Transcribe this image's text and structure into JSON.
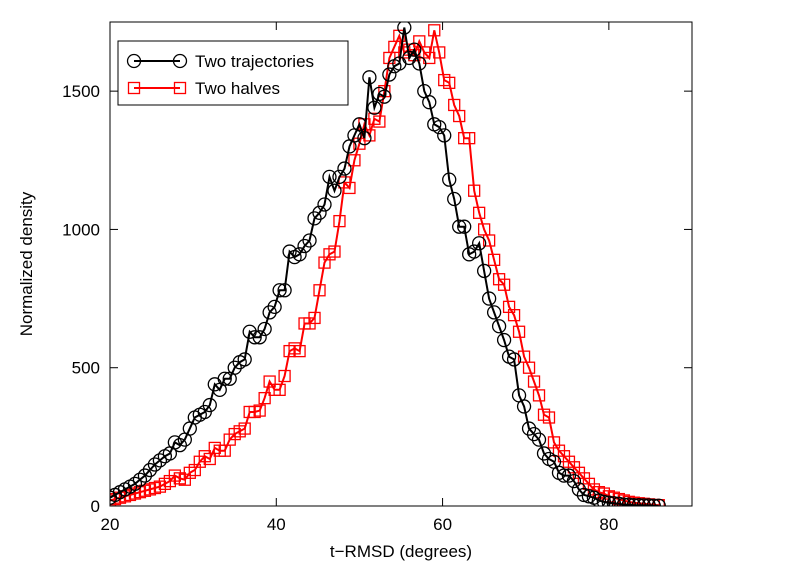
{
  "chart_data": {
    "type": "line",
    "xlabel": "t−RMSD (degrees)",
    "ylabel": "Normalized density",
    "xlim": [
      20,
      90
    ],
    "ylim": [
      0,
      1750
    ],
    "xticks": [
      20,
      40,
      60,
      80
    ],
    "yticks": [
      0,
      500,
      1000,
      1500
    ],
    "grid": false,
    "legend_position": "top-left",
    "colors": {
      "two_trajectories": "#000000",
      "two_halves": "#ff0000"
    },
    "series": [
      {
        "name": "Two trajectories",
        "marker": "circle",
        "points": [
          [
            20,
            30
          ],
          [
            20.6,
            40
          ],
          [
            21.2,
            50
          ],
          [
            21.8,
            60
          ],
          [
            22.4,
            70
          ],
          [
            23.0,
            80
          ],
          [
            23.6,
            95
          ],
          [
            24.2,
            110
          ],
          [
            24.8,
            130
          ],
          [
            25.4,
            150
          ],
          [
            26.0,
            165
          ],
          [
            26.6,
            180
          ],
          [
            27.2,
            190
          ],
          [
            27.8,
            230
          ],
          [
            28.4,
            220
          ],
          [
            29.0,
            240
          ],
          [
            29.6,
            280
          ],
          [
            30.2,
            320
          ],
          [
            30.8,
            330
          ],
          [
            31.4,
            340
          ],
          [
            32.0,
            365
          ],
          [
            32.6,
            440
          ],
          [
            33.2,
            420
          ],
          [
            33.8,
            460
          ],
          [
            34.4,
            460
          ],
          [
            35.0,
            500
          ],
          [
            35.6,
            520
          ],
          [
            36.2,
            530
          ],
          [
            36.8,
            630
          ],
          [
            37.4,
            610
          ],
          [
            38.0,
            610
          ],
          [
            38.6,
            640
          ],
          [
            39.2,
            700
          ],
          [
            39.8,
            720
          ],
          [
            40.4,
            780
          ],
          [
            41.0,
            780
          ],
          [
            41.6,
            920
          ],
          [
            42.2,
            900
          ],
          [
            42.8,
            910
          ],
          [
            43.4,
            940
          ],
          [
            44.0,
            960
          ],
          [
            44.6,
            1040
          ],
          [
            45.2,
            1060
          ],
          [
            45.8,
            1090
          ],
          [
            46.4,
            1190
          ],
          [
            47.0,
            1140
          ],
          [
            47.6,
            1190
          ],
          [
            48.2,
            1220
          ],
          [
            48.8,
            1300
          ],
          [
            49.4,
            1340
          ],
          [
            50.0,
            1380
          ],
          [
            50.6,
            1330
          ],
          [
            51.2,
            1550
          ],
          [
            51.8,
            1440
          ],
          [
            52.4,
            1490
          ],
          [
            53.0,
            1480
          ],
          [
            53.6,
            1560
          ],
          [
            54.2,
            1590
          ],
          [
            54.8,
            1600
          ],
          [
            55.4,
            1730
          ],
          [
            56.0,
            1620
          ],
          [
            56.6,
            1650
          ],
          [
            57.2,
            1600
          ],
          [
            57.8,
            1500
          ],
          [
            58.4,
            1460
          ],
          [
            59.0,
            1380
          ],
          [
            59.6,
            1370
          ],
          [
            60.2,
            1340
          ],
          [
            60.8,
            1180
          ],
          [
            61.4,
            1110
          ],
          [
            62.0,
            1010
          ],
          [
            62.6,
            1010
          ],
          [
            63.2,
            910
          ],
          [
            63.8,
            920
          ],
          [
            64.4,
            950
          ],
          [
            65.0,
            850
          ],
          [
            65.6,
            750
          ],
          [
            66.2,
            700
          ],
          [
            66.8,
            650
          ],
          [
            67.4,
            600
          ],
          [
            68.0,
            540
          ],
          [
            68.6,
            530
          ],
          [
            69.2,
            400
          ],
          [
            69.8,
            360
          ],
          [
            70.4,
            280
          ],
          [
            71.0,
            260
          ],
          [
            71.6,
            240
          ],
          [
            72.2,
            190
          ],
          [
            72.8,
            170
          ],
          [
            73.4,
            160
          ],
          [
            74.0,
            120
          ],
          [
            74.6,
            110
          ],
          [
            75.2,
            110
          ],
          [
            75.8,
            90
          ],
          [
            76.4,
            60
          ],
          [
            77.0,
            40
          ],
          [
            77.6,
            35
          ],
          [
            78.2,
            30
          ],
          [
            78.8,
            20
          ],
          [
            79.4,
            15
          ],
          [
            80.0,
            12
          ],
          [
            80.6,
            10
          ],
          [
            81.2,
            8
          ],
          [
            81.8,
            5
          ],
          [
            82.4,
            5
          ],
          [
            83.0,
            3
          ],
          [
            83.6,
            3
          ],
          [
            84.2,
            2
          ],
          [
            84.8,
            2
          ],
          [
            85.4,
            1
          ],
          [
            86.0,
            1
          ]
        ]
      },
      {
        "name": "Two halves",
        "marker": "square",
        "points": [
          [
            20,
            20
          ],
          [
            20.6,
            25
          ],
          [
            21.2,
            30
          ],
          [
            21.8,
            35
          ],
          [
            22.4,
            40
          ],
          [
            23.0,
            45
          ],
          [
            23.6,
            50
          ],
          [
            24.2,
            55
          ],
          [
            24.8,
            60
          ],
          [
            25.4,
            65
          ],
          [
            26.0,
            70
          ],
          [
            26.6,
            80
          ],
          [
            27.2,
            90
          ],
          [
            27.8,
            110
          ],
          [
            28.4,
            100
          ],
          [
            29.0,
            95
          ],
          [
            29.6,
            120
          ],
          [
            30.2,
            130
          ],
          [
            30.8,
            160
          ],
          [
            31.4,
            180
          ],
          [
            32.0,
            170
          ],
          [
            32.6,
            210
          ],
          [
            33.2,
            200
          ],
          [
            33.8,
            200
          ],
          [
            34.4,
            240
          ],
          [
            35.0,
            260
          ],
          [
            35.6,
            270
          ],
          [
            36.2,
            280
          ],
          [
            36.8,
            340
          ],
          [
            37.4,
            340
          ],
          [
            38.0,
            345
          ],
          [
            38.6,
            390
          ],
          [
            39.2,
            450
          ],
          [
            39.8,
            420
          ],
          [
            40.4,
            420
          ],
          [
            41.0,
            470
          ],
          [
            41.6,
            560
          ],
          [
            42.2,
            570
          ],
          [
            42.8,
            560
          ],
          [
            43.4,
            660
          ],
          [
            44.0,
            660
          ],
          [
            44.6,
            680
          ],
          [
            45.2,
            780
          ],
          [
            45.8,
            880
          ],
          [
            46.4,
            910
          ],
          [
            47.0,
            920
          ],
          [
            47.6,
            1030
          ],
          [
            48.2,
            1170
          ],
          [
            48.8,
            1150
          ],
          [
            49.4,
            1250
          ],
          [
            50.0,
            1310
          ],
          [
            50.6,
            1380
          ],
          [
            51.2,
            1340
          ],
          [
            51.8,
            1400
          ],
          [
            52.4,
            1390
          ],
          [
            53.0,
            1500
          ],
          [
            53.6,
            1620
          ],
          [
            54.2,
            1660
          ],
          [
            54.8,
            1700
          ],
          [
            55.4,
            1640
          ],
          [
            56.0,
            1650
          ],
          [
            56.6,
            1630
          ],
          [
            57.2,
            1680
          ],
          [
            57.8,
            1640
          ],
          [
            58.4,
            1620
          ],
          [
            59.0,
            1720
          ],
          [
            59.6,
            1640
          ],
          [
            60.2,
            1540
          ],
          [
            60.8,
            1530
          ],
          [
            61.4,
            1450
          ],
          [
            62.0,
            1410
          ],
          [
            62.6,
            1330
          ],
          [
            63.2,
            1330
          ],
          [
            63.8,
            1140
          ],
          [
            64.4,
            1060
          ],
          [
            65.0,
            1000
          ],
          [
            65.6,
            960
          ],
          [
            66.2,
            890
          ],
          [
            66.8,
            820
          ],
          [
            67.4,
            800
          ],
          [
            68.0,
            720
          ],
          [
            68.6,
            690
          ],
          [
            69.2,
            630
          ],
          [
            69.8,
            540
          ],
          [
            70.4,
            500
          ],
          [
            71.0,
            450
          ],
          [
            71.6,
            400
          ],
          [
            72.2,
            330
          ],
          [
            72.8,
            320
          ],
          [
            73.4,
            230
          ],
          [
            74.0,
            200
          ],
          [
            74.6,
            180
          ],
          [
            75.2,
            160
          ],
          [
            75.8,
            140
          ],
          [
            76.4,
            120
          ],
          [
            77.0,
            100
          ],
          [
            77.6,
            80
          ],
          [
            78.2,
            60
          ],
          [
            78.8,
            50
          ],
          [
            79.4,
            45
          ],
          [
            80.0,
            35
          ],
          [
            80.6,
            30
          ],
          [
            81.2,
            25
          ],
          [
            81.8,
            20
          ],
          [
            82.4,
            15
          ],
          [
            83.0,
            12
          ],
          [
            83.6,
            10
          ],
          [
            84.2,
            8
          ],
          [
            84.8,
            6
          ],
          [
            85.4,
            4
          ],
          [
            86.0,
            3
          ]
        ]
      }
    ]
  }
}
